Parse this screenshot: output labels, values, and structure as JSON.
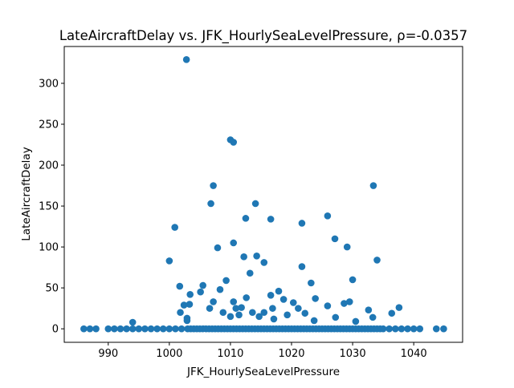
{
  "chart_data": {
    "type": "scatter",
    "title": "LateAircraftDelay vs. JFK_HourlySeaLevelPressure, ρ=-0.0357",
    "x_label": "JFK_HourlySeaLevelPressure",
    "y_label": "LateAircraftDelay",
    "color": "#1f77b4",
    "x": [
      986,
      987,
      988,
      990,
      991,
      992,
      993,
      994,
      995,
      996,
      997,
      998,
      999,
      1000,
      1001,
      1002,
      1003,
      1003.5,
      1004,
      1004.5,
      1005,
      1005.5,
      1006,
      1006.5,
      1007,
      1007.5,
      1008,
      1008.5,
      1009,
      1009.5,
      1010,
      1010.5,
      1011,
      1011.5,
      1012,
      1012.5,
      1013,
      1013.5,
      1014,
      1014.5,
      1015,
      1015.5,
      1016,
      1016.5,
      1017,
      1017.5,
      1018,
      1018.5,
      1019,
      1019.5,
      1020,
      1020.5,
      1021,
      1021.5,
      1022,
      1022.5,
      1023,
      1023.5,
      1024,
      1024.5,
      1025,
      1025.5,
      1026,
      1026.5,
      1027,
      1027.5,
      1028,
      1028.5,
      1029,
      1029.5,
      1030,
      1030.5,
      1031,
      1031.5,
      1032,
      1032.5,
      1033,
      1033.5,
      1034,
      1034.5,
      1035,
      1036,
      1037,
      1038,
      1039,
      1040,
      1041,
      1043.7,
      1044.9,
      1002.8,
      1010,
      1010.5,
      1007.2,
      1033.4,
      1006.8,
      1014.1,
      1000.9,
      1012.5,
      1016.6,
      1021.7,
      1025.9,
      1010.5,
      1027.1,
      1007.9,
      1029.1,
      1012.2,
      1014.3,
      1000,
      1015.5,
      1034,
      1021.7,
      1013.2,
      1030,
      1009.3,
      1023.2,
      1001.7,
      1005.5,
      1005.1,
      1008.3,
      1017.9,
      1003.4,
      1012.6,
      1016.6,
      1018.7,
      1023.9,
      1007.2,
      1010.5,
      1029.5,
      1003.3,
      1002.4,
      1020.3,
      1028.6,
      1006.6,
      1010.9,
      1011.8,
      1016.9,
      1021.1,
      1025.9,
      1032.6,
      1037.6,
      1001.8,
      1008.8,
      1013.6,
      1015.5,
      1036.4,
      1011.4,
      1022.2,
      1002.9,
      1010,
      1014.7,
      1019.3,
      1027.2,
      1033.3,
      994,
      1002.9,
      1017.1,
      1023.7,
      1030.5
    ],
    "values": [
      0,
      0,
      0,
      0,
      0,
      0,
      0,
      0,
      0,
      0,
      0,
      0,
      0,
      0,
      0,
      0,
      0,
      0,
      0,
      0,
      0,
      0,
      0,
      0,
      0,
      0,
      0,
      0,
      0,
      0,
      0,
      0,
      0,
      0,
      0,
      0,
      0,
      0,
      0,
      0,
      0,
      0,
      0,
      0,
      0,
      0,
      0,
      0,
      0,
      0,
      0,
      0,
      0,
      0,
      0,
      0,
      0,
      0,
      0,
      0,
      0,
      0,
      0,
      0,
      0,
      0,
      0,
      0,
      0,
      0,
      0,
      0,
      0,
      0,
      0,
      0,
      0,
      0,
      0,
      0,
      0,
      0,
      0,
      0,
      0,
      0,
      0,
      0,
      0,
      329,
      231,
      228,
      175,
      175,
      153,
      153,
      124,
      135,
      134,
      129,
      138,
      105,
      110,
      99,
      100,
      88,
      89,
      83,
      81,
      84,
      76,
      68,
      60,
      59,
      56,
      52,
      53,
      45,
      48,
      46,
      42,
      38,
      41,
      36,
      37,
      33,
      33,
      33,
      30,
      29,
      32,
      31,
      25,
      25,
      26,
      25,
      25,
      28,
      23,
      26,
      20,
      20,
      20,
      20,
      19,
      17,
      19,
      13,
      15,
      15,
      17,
      14,
      14,
      8,
      10,
      12,
      10,
      9
    ],
    "xlim": [
      982.8,
      1048
    ],
    "ylim": [
      -16.5,
      345
    ],
    "xticks": [
      990,
      1000,
      1010,
      1020,
      1030,
      1040
    ],
    "yticks": [
      0,
      50,
      100,
      150,
      200,
      250,
      300
    ]
  }
}
